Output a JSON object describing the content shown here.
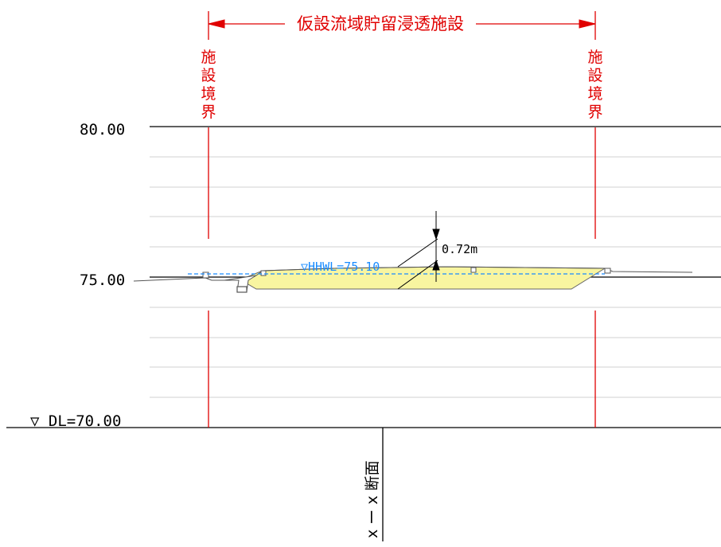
{
  "title": "仮設流域貯留浸透施設",
  "boundary_label": [
    "施",
    "設",
    "境",
    "界"
  ],
  "elevations": {
    "top": "80.00",
    "mid": "75.00",
    "datum": "▽ DL=70.00"
  },
  "water_level": "▽HHWL=75.10",
  "depth_label": "0.72m",
  "section_label": "x ー x 断面",
  "colors": {
    "boundary": "#e00000",
    "water": "#1a8cff",
    "fill": "#f8f5a0",
    "grid": "#d2d2d2",
    "line": "#000000"
  }
}
